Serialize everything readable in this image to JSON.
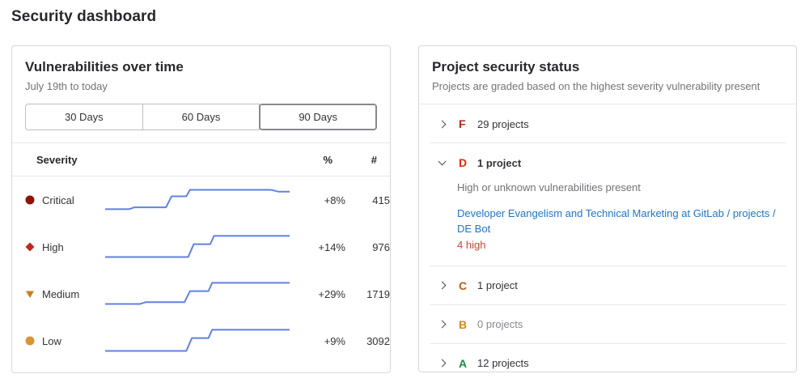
{
  "page": {
    "title": "Security dashboard"
  },
  "colors": {
    "sparkline": "#6180e0",
    "link": "#1f75cb",
    "danger_text": "#d04434",
    "text": "#333238",
    "muted": "#737278",
    "panel_border": "#d8d8db"
  },
  "vuln_panel": {
    "title": "Vulnerabilities over time",
    "subtitle": "July 19th to today",
    "range_buttons": [
      {
        "label": "30 Days",
        "selected": false
      },
      {
        "label": "60 Days",
        "selected": false
      },
      {
        "label": "90 Days",
        "selected": true
      }
    ],
    "table": {
      "headers": {
        "severity": "Severity",
        "percent": "%",
        "count": "#"
      },
      "rows": [
        {
          "severity": "Critical",
          "icon": "severity-critical-icon",
          "icon_shape": "circle",
          "icon_color": "#8d1300",
          "percent": "+8%",
          "count": "415",
          "spark": [
            [
              0,
              25
            ],
            [
              13,
              25
            ],
            [
              16,
              23
            ],
            [
              33,
              23
            ],
            [
              36,
              11
            ],
            [
              44,
              11
            ],
            [
              46,
              4
            ],
            [
              90,
              4
            ],
            [
              94,
              6
            ],
            [
              100,
              6
            ]
          ]
        },
        {
          "severity": "High",
          "icon": "severity-high-icon",
          "icon_shape": "diamond",
          "icon_color": "#c0291a",
          "percent": "+14%",
          "count": "976",
          "spark": [
            [
              0,
              26
            ],
            [
              45,
              26
            ],
            [
              48,
              12
            ],
            [
              57,
              12
            ],
            [
              59,
              3
            ],
            [
              100,
              3
            ]
          ]
        },
        {
          "severity": "Medium",
          "icon": "severity-medium-icon",
          "icon_shape": "triangle-down",
          "icon_color": "#cc7d1f",
          "percent": "+29%",
          "count": "1719",
          "spark": [
            [
              0,
              26
            ],
            [
              19,
              26
            ],
            [
              22,
              24
            ],
            [
              43,
              24
            ],
            [
              46,
              12
            ],
            [
              56,
              12
            ],
            [
              58,
              3
            ],
            [
              100,
              3
            ]
          ]
        },
        {
          "severity": "Low",
          "icon": "severity-low-icon",
          "icon_shape": "circle",
          "icon_color": "#d99530",
          "percent": "+9%",
          "count": "3092",
          "spark": [
            [
              0,
              26
            ],
            [
              44,
              26
            ],
            [
              47,
              12
            ],
            [
              56,
              12
            ],
            [
              58,
              3
            ],
            [
              100,
              3
            ]
          ]
        }
      ]
    }
  },
  "project_panel": {
    "title": "Project security status",
    "subtitle": "Projects are graded based on the highest severity vulnerability present",
    "grades": [
      {
        "letter": "F",
        "color": "#b2271f",
        "count_text": "29 projects",
        "expanded": false,
        "muted": false
      },
      {
        "letter": "D",
        "color": "#dd2b0e",
        "count_text": "1 project",
        "expanded": true,
        "muted": false,
        "description": "High or unknown vulnerabilities present",
        "project_link": "Developer Evangelism and Technical Marketing at GitLab / projects / DE Bot",
        "badge": "4 high"
      },
      {
        "letter": "C",
        "color": "#c25b18",
        "count_text": "1 project",
        "expanded": false,
        "muted": false
      },
      {
        "letter": "B",
        "color": "#cf8a1e",
        "count_text": "0 projects",
        "expanded": false,
        "muted": true
      },
      {
        "letter": "A",
        "color": "#1d8747",
        "count_text": "12 projects",
        "expanded": false,
        "muted": false
      }
    ]
  },
  "chart_data": {
    "type": "line",
    "title": "Vulnerabilities over time (90 Days sparklines)",
    "x_range_label": "July 19th to today",
    "grid": false,
    "legend": false,
    "series": [
      {
        "name": "Critical",
        "change_percent": "+8%",
        "current_count": 415,
        "normalized_points": [
          [
            0,
            25
          ],
          [
            13,
            25
          ],
          [
            16,
            23
          ],
          [
            33,
            23
          ],
          [
            36,
            11
          ],
          [
            44,
            11
          ],
          [
            46,
            4
          ],
          [
            90,
            4
          ],
          [
            94,
            6
          ],
          [
            100,
            6
          ]
        ]
      },
      {
        "name": "High",
        "change_percent": "+14%",
        "current_count": 976,
        "normalized_points": [
          [
            0,
            26
          ],
          [
            45,
            26
          ],
          [
            48,
            12
          ],
          [
            57,
            12
          ],
          [
            59,
            3
          ],
          [
            100,
            3
          ]
        ]
      },
      {
        "name": "Medium",
        "change_percent": "+29%",
        "current_count": 1719,
        "normalized_points": [
          [
            0,
            26
          ],
          [
            19,
            26
          ],
          [
            22,
            24
          ],
          [
            43,
            24
          ],
          [
            46,
            12
          ],
          [
            56,
            12
          ],
          [
            58,
            3
          ],
          [
            100,
            3
          ]
        ]
      },
      {
        "name": "Low",
        "change_percent": "+9%",
        "current_count": 3092,
        "normalized_points": [
          [
            0,
            26
          ],
          [
            44,
            26
          ],
          [
            47,
            12
          ],
          [
            56,
            12
          ],
          [
            58,
            3
          ],
          [
            100,
            3
          ]
        ]
      }
    ],
    "note": "y axis inverted screen coords in 100x30 viewBox; lines rise in steps over time"
  }
}
